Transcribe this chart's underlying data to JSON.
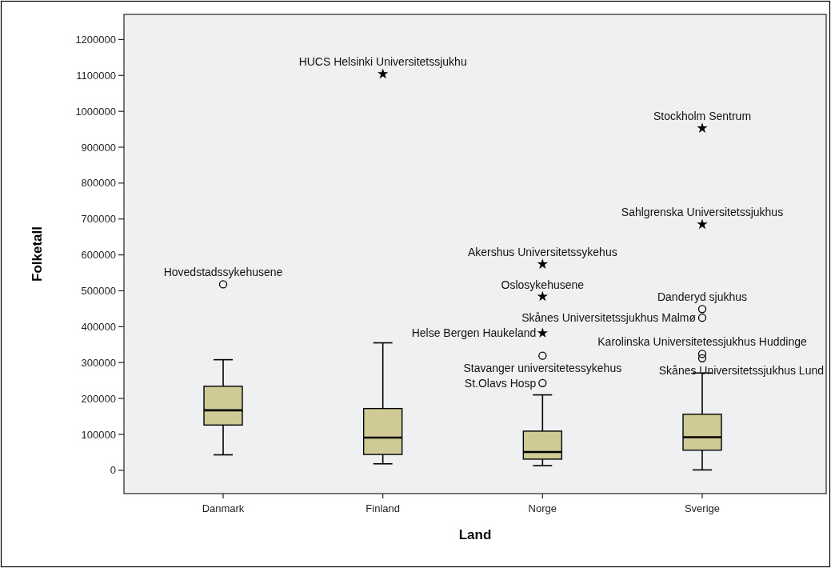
{
  "chart_data": {
    "type": "box",
    "xlabel": "Land",
    "ylabel": "Folketall",
    "categories": [
      "Danmark",
      "Finland",
      "Norge",
      "Sverige"
    ],
    "ylim": [
      -65000,
      1270000
    ],
    "yticks": [
      0,
      100000,
      200000,
      300000,
      400000,
      500000,
      600000,
      700000,
      800000,
      900000,
      1000000,
      1100000,
      1200000
    ],
    "series": [
      {
        "type": "box",
        "color": "#cfca96",
        "boxes": [
          {
            "low": 43000,
            "q1": 126000,
            "median": 167000,
            "q3": 234000,
            "high": 308000
          },
          {
            "low": 18000,
            "q1": 44000,
            "median": 91000,
            "q3": 172000,
            "high": 355000
          },
          {
            "low": 13000,
            "q1": 31000,
            "median": 51000,
            "q3": 109000,
            "high": 210000
          },
          {
            "low": 1000,
            "q1": 56000,
            "median": 92000,
            "q3": 156000,
            "high": 271000
          }
        ]
      },
      {
        "type": "scatter",
        "color": "#000000",
        "marker": "circle",
        "x": [
          "Danmark",
          "Norge",
          "Norge",
          "Sverige",
          "Sverige",
          "Sverige",
          "Sverige"
        ],
        "values": [
          518000,
          319000,
          243000,
          449000,
          425000,
          324000,
          312000
        ]
      },
      {
        "type": "scatter",
        "color": "#000000",
        "marker": "star",
        "x": [
          "Finland",
          "Norge",
          "Norge",
          "Norge",
          "Sverige",
          "Sverige"
        ],
        "values": [
          1104000,
          574000,
          484000,
          382000,
          953000,
          685000
        ]
      }
    ],
    "annotations": [
      {
        "text": "Hovedstadssykehusene",
        "x": "Danmark",
        "y": 518000
      },
      {
        "text": "HUCS Helsinki Universitetssjukhu",
        "x": "Finland",
        "y": 1104000
      },
      {
        "text": "Akershus Universitetssykehus",
        "x": "Norge",
        "y": 574000
      },
      {
        "text": "Oslosykehusene",
        "x": "Norge",
        "y": 484000
      },
      {
        "text": "Helse Bergen Haukeland",
        "x": "Norge",
        "y": 382000
      },
      {
        "text": "Stavanger universitetessykehus",
        "x": "Norge",
        "y": 319000
      },
      {
        "text": "St.Olavs Hosp",
        "x": "Norge",
        "y": 243000
      },
      {
        "text": "Stockholm Sentrum",
        "x": "Sverige",
        "y": 953000
      },
      {
        "text": "Sahlgrenska Universitetssjukhus",
        "x": "Sverige",
        "y": 685000
      },
      {
        "text": "Danderyd sjukhus",
        "x": "Sverige",
        "y": 449000
      },
      {
        "text": "Skånes Universitetssjukhus Malmø",
        "x": "Sverige",
        "y": 425000
      },
      {
        "text": "Karolinska Universitetessjukhus Huddinge",
        "x": "Sverige",
        "y": 324000
      },
      {
        "text": "Skånes Universitetssjukhus Lund",
        "x": "Sverige",
        "y": 312000
      }
    ]
  }
}
